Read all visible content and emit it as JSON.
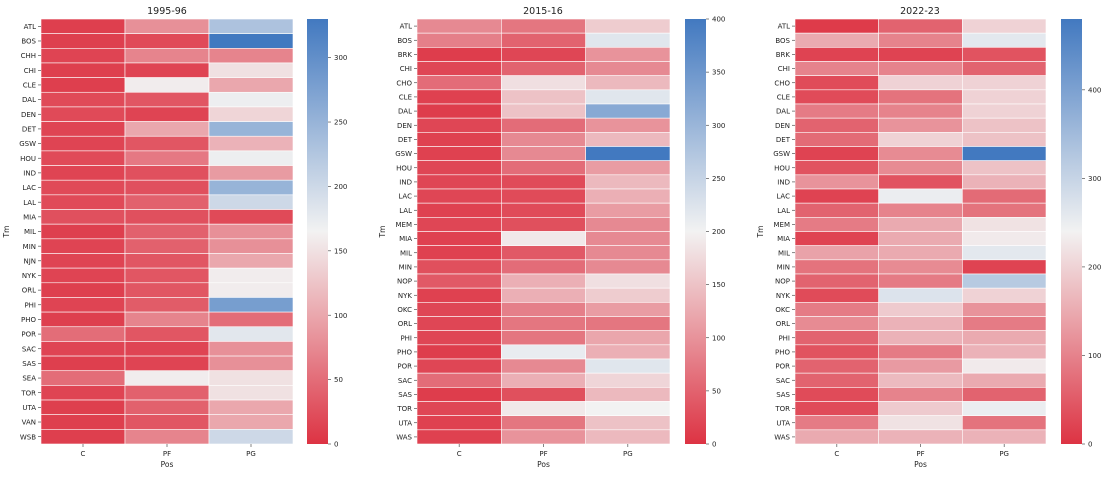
{
  "chart_data": [
    {
      "type": "heatmap",
      "title": "1995-96",
      "xlabel": "Pos",
      "ylabel": "Tm",
      "columns": [
        "C",
        "PF",
        "PG"
      ],
      "rows": [
        "ATL",
        "BOS",
        "CHH",
        "CHI",
        "CLE",
        "DAL",
        "DEN",
        "DET",
        "GSW",
        "HOU",
        "IND",
        "LAC",
        "LAL",
        "MIA",
        "MIL",
        "MIN",
        "NJN",
        "NYK",
        "ORL",
        "PHI",
        "PHO",
        "POR",
        "SAC",
        "SAS",
        "SEA",
        "TOR",
        "UTA",
        "VAN",
        "WSB"
      ],
      "values": [
        [
          10,
          80,
          230
        ],
        [
          10,
          20,
          330
        ],
        [
          15,
          70,
          70
        ],
        [
          10,
          15,
          150
        ],
        [
          10,
          160,
          100
        ],
        [
          20,
          30,
          170
        ],
        [
          20,
          15,
          140
        ],
        [
          15,
          100,
          250
        ],
        [
          15,
          30,
          110
        ],
        [
          20,
          60,
          170
        ],
        [
          15,
          25,
          90
        ],
        [
          20,
          25,
          250
        ],
        [
          20,
          40,
          200
        ],
        [
          25,
          25,
          20
        ],
        [
          10,
          40,
          80
        ],
        [
          15,
          40,
          80
        ],
        [
          15,
          30,
          100
        ],
        [
          15,
          30,
          160
        ],
        [
          10,
          30,
          160
        ],
        [
          15,
          35,
          280
        ],
        [
          10,
          70,
          50
        ],
        [
          50,
          30,
          180
        ],
        [
          15,
          15,
          80
        ],
        [
          10,
          15,
          80
        ],
        [
          50,
          160,
          150
        ],
        [
          15,
          40,
          150
        ],
        [
          10,
          40,
          100
        ],
        [
          10,
          30,
          100
        ],
        [
          10,
          70,
          200
        ]
      ],
      "colorbar": {
        "min": 0,
        "max": 330,
        "ticks": [
          0,
          50,
          100,
          150,
          200,
          250,
          300
        ]
      }
    },
    {
      "type": "heatmap",
      "title": "2015-16",
      "xlabel": "Pos",
      "ylabel": "Tm",
      "columns": [
        "C",
        "PF",
        "PG"
      ],
      "rows": [
        "ATL",
        "BOS",
        "BRK",
        "CHI",
        "CHO",
        "CLE",
        "DAL",
        "DEN",
        "DET",
        "GSW",
        "HOU",
        "IND",
        "LAC",
        "LAL",
        "MEM",
        "MIA",
        "MIL",
        "MIN",
        "NOP",
        "NYK",
        "OKC",
        "ORL",
        "PHI",
        "PHO",
        "POR",
        "SAC",
        "SAS",
        "TOR",
        "UTA",
        "WAS"
      ],
      "values": [
        [
          90,
          70,
          160
        ],
        [
          80,
          50,
          220
        ],
        [
          10,
          20,
          100
        ],
        [
          20,
          50,
          90
        ],
        [
          60,
          180,
          140
        ],
        [
          15,
          150,
          220
        ],
        [
          10,
          150,
          320
        ],
        [
          20,
          60,
          100
        ],
        [
          15,
          90,
          140
        ],
        [
          15,
          90,
          400
        ],
        [
          20,
          60,
          110
        ],
        [
          20,
          25,
          140
        ],
        [
          20,
          25,
          130
        ],
        [
          15,
          25,
          110
        ],
        [
          20,
          30,
          90
        ],
        [
          15,
          190,
          90
        ],
        [
          15,
          40,
          90
        ],
        [
          30,
          60,
          90
        ],
        [
          40,
          130,
          180
        ],
        [
          15,
          130,
          160
        ],
        [
          20,
          80,
          110
        ],
        [
          20,
          70,
          70
        ],
        [
          20,
          70,
          120
        ],
        [
          10,
          210,
          130
        ],
        [
          20,
          90,
          220
        ],
        [
          60,
          130,
          170
        ],
        [
          10,
          30,
          140
        ],
        [
          20,
          190,
          200
        ],
        [
          15,
          70,
          150
        ],
        [
          15,
          100,
          140
        ]
      ],
      "colorbar": {
        "min": 0,
        "max": 400,
        "ticks": [
          0,
          50,
          100,
          150,
          200,
          250,
          300,
          350,
          400
        ]
      }
    },
    {
      "type": "heatmap",
      "title": "2022-23",
      "xlabel": "Pos",
      "ylabel": "Tm",
      "columns": [
        "C",
        "PF",
        "PG"
      ],
      "rows": [
        "ATL",
        "BOS",
        "BRK",
        "CHI",
        "CHO",
        "CLE",
        "DAL",
        "DEN",
        "DET",
        "GSW",
        "HOU",
        "IND",
        "LAC",
        "LAL",
        "MEM",
        "MIA",
        "MIL",
        "MIN",
        "NOP",
        "NYK",
        "OKC",
        "ORL",
        "PHI",
        "PHO",
        "POR",
        "SAC",
        "SAS",
        "TOR",
        "UTA",
        "WAS"
      ],
      "values": [
        [
          10,
          60,
          200
        ],
        [
          150,
          100,
          260
        ],
        [
          20,
          20,
          40
        ],
        [
          100,
          100,
          60
        ],
        [
          30,
          200,
          200
        ],
        [
          30,
          80,
          200
        ],
        [
          90,
          100,
          200
        ],
        [
          60,
          120,
          180
        ],
        [
          70,
          200,
          180
        ],
        [
          20,
          110,
          480
        ],
        [
          40,
          110,
          180
        ],
        [
          120,
          40,
          160
        ],
        [
          20,
          250,
          70
        ],
        [
          60,
          100,
          80
        ],
        [
          90,
          150,
          220
        ],
        [
          20,
          150,
          230
        ],
        [
          140,
          150,
          260
        ],
        [
          80,
          110,
          20
        ],
        [
          60,
          90,
          320
        ],
        [
          30,
          270,
          200
        ],
        [
          90,
          190,
          120
        ],
        [
          110,
          160,
          90
        ],
        [
          60,
          160,
          150
        ],
        [
          40,
          90,
          160
        ],
        [
          60,
          130,
          230
        ],
        [
          60,
          170,
          150
        ],
        [
          30,
          100,
          60
        ],
        [
          30,
          190,
          250
        ],
        [
          90,
          220,
          80
        ],
        [
          150,
          160,
          160
        ]
      ],
      "colorbar": {
        "min": 0,
        "max": 480,
        "ticks": [
          0,
          100,
          200,
          300,
          400
        ]
      }
    }
  ]
}
